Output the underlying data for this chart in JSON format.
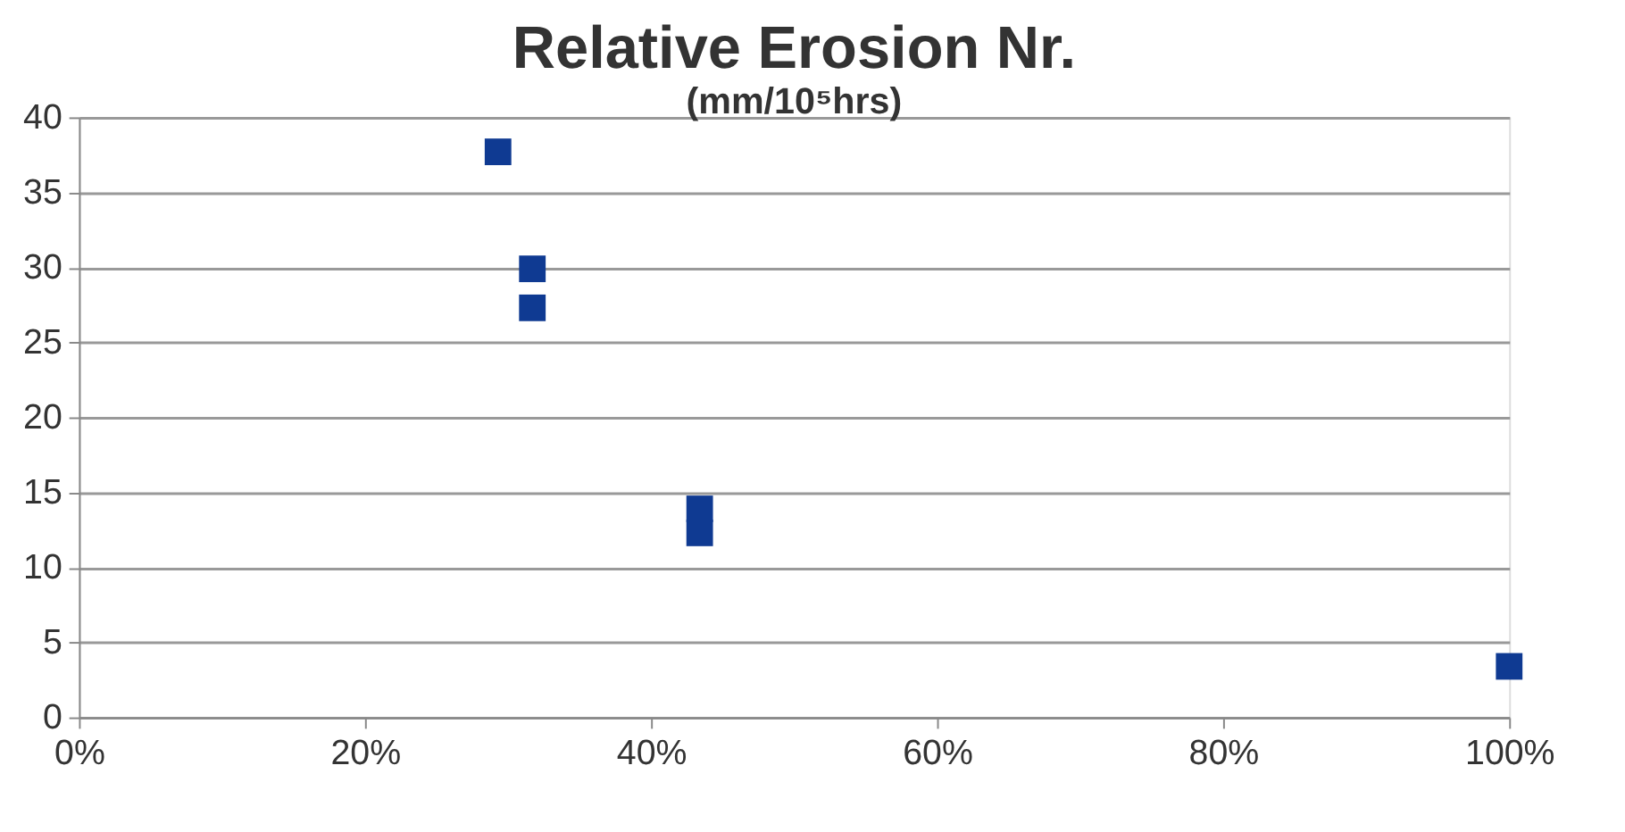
{
  "chart_data": {
    "type": "scatter",
    "title": "Relative Erosion Nr.",
    "subtitle": "(mm/10⁵hrs)",
    "x": [
      29.3,
      31.7,
      31.7,
      43.4,
      43.4,
      100
    ],
    "values": [
      37.7,
      29.9,
      27.3,
      13.9,
      12.3,
      3.4
    ],
    "color": "#0f3a92",
    "marker": "square",
    "xlim": [
      0,
      100
    ],
    "xticks": [
      {
        "value": 0,
        "label": "0%"
      },
      {
        "value": 20,
        "label": "20%"
      },
      {
        "value": 40,
        "label": "40%"
      },
      {
        "value": 60,
        "label": "60%"
      },
      {
        "value": 80,
        "label": "80%"
      },
      {
        "value": 100,
        "label": "100%"
      }
    ],
    "ylim": [
      0,
      40
    ],
    "yticks": [
      0,
      5,
      10,
      15,
      20,
      25,
      30,
      35,
      40
    ],
    "grid": "y"
  }
}
